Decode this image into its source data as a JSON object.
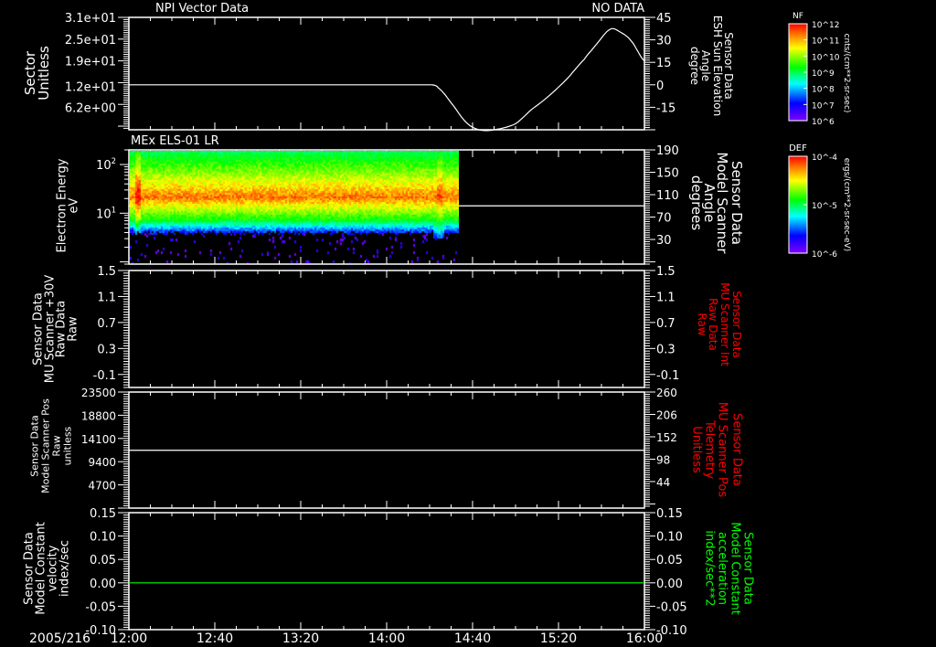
{
  "header": {
    "left_title": "NPI Vector Data",
    "right_status": "NO DATA"
  },
  "colors": {
    "background": "#000000",
    "axis": "#ffffff",
    "red_label": "#ff0000",
    "green_label": "#00ff00"
  },
  "chart_data": [
    {
      "type": "line",
      "panel": "sun-elevation",
      "left_axis": {
        "title": [
          "Sector",
          "Unitless"
        ],
        "ticks": [
          "3.1e+01",
          "2.5e+01",
          "1.9e+01",
          "1.2e+01",
          "6.2e+00"
        ],
        "tick_values": [
          31,
          25,
          19,
          12,
          6.2
        ],
        "range": [
          0,
          31
        ]
      },
      "right_axis": {
        "title": [
          "Sensor Data",
          "ESH Sun Elevation",
          "Angle",
          "degree"
        ],
        "ticks": [
          "45",
          "30",
          "15",
          "0",
          "-15"
        ],
        "tick_values": [
          45,
          30,
          15,
          0,
          -15
        ],
        "range": [
          -30,
          45
        ]
      },
      "series": [
        {
          "name": "ESH Sun Elevation Angle",
          "axis": "right",
          "color": "#ffffff",
          "x_minutes": [
            0,
            141,
            144,
            150,
            157,
            163,
            170,
            180,
            187,
            195,
            204,
            212,
            217,
            224,
            229,
            234,
            240
          ],
          "y": [
            0,
            0,
            -2,
            -12,
            -25,
            -30,
            -30,
            -26,
            -17,
            -8,
            4,
            17,
            26,
            37,
            35,
            29,
            16
          ]
        }
      ]
    },
    {
      "type": "heatmap",
      "panel": "electron-spectrogram",
      "title": "MEx ELS-01 LR",
      "left_axis": {
        "title": [
          "Electron Energy",
          "eV"
        ],
        "ticks": [
          "10^2",
          "10^1"
        ],
        "tick_values": [
          100,
          10
        ],
        "scale": "log",
        "range": [
          0.9,
          200
        ]
      },
      "right_axis": {
        "title": [
          "Sensor Data",
          "Model Scanner",
          "Angle",
          "degrees"
        ],
        "ticks": [
          "190",
          "150",
          "110",
          "70",
          "30"
        ],
        "tick_values": [
          190,
          150,
          110,
          70,
          30
        ],
        "range": [
          -14,
          190
        ]
      },
      "data_extent_minutes": [
        0,
        154
      ],
      "peak_energy_eV": 15,
      "series": [
        {
          "name": "Model Scanner Angle",
          "axis": "right",
          "color": "#ffffff",
          "x_minutes": [
            0,
            240
          ],
          "y": [
            90,
            90
          ]
        }
      ]
    },
    {
      "type": "line",
      "panel": "mu-scanner-30v",
      "left_axis": {
        "title": [
          "Sensor Data",
          "MU Scanner +30V",
          "Raw Data",
          "Raw"
        ],
        "ticks": [
          "1.5",
          "1.1",
          "0.7",
          "0.3",
          "-0.1"
        ],
        "tick_values": [
          1.5,
          1.1,
          0.7,
          0.3,
          -0.1
        ],
        "range": [
          -0.3,
          1.5
        ]
      },
      "right_axis": {
        "title": [
          "Sensor Data",
          "MU Scanner Int",
          "Raw Data",
          "Raw"
        ],
        "title_color": "#ff0000",
        "ticks": [
          "1.5",
          "1.1",
          "0.7",
          "0.3",
          "-0.1"
        ],
        "tick_values": [
          1.5,
          1.1,
          0.7,
          0.3,
          -0.1
        ],
        "range": [
          -0.3,
          1.5
        ]
      },
      "series": []
    },
    {
      "type": "line",
      "panel": "scanner-pos",
      "left_axis": {
        "title": [
          "Sensor Data",
          "Model Scanner Pos",
          "Raw",
          "unitless"
        ],
        "ticks": [
          "23500",
          "18800",
          "14100",
          "9400",
          "4700"
        ],
        "tick_values": [
          23500,
          18800,
          14100,
          9400,
          4700
        ],
        "range": [
          0,
          23500
        ]
      },
      "right_axis": {
        "title": [
          "Sensor Data",
          "MU Scanner Pos",
          "Telemetry",
          "Unitless"
        ],
        "title_color": "#ff0000",
        "ticks": [
          "260",
          "206",
          "152",
          "98",
          "44"
        ],
        "tick_values": [
          260,
          206,
          152,
          98,
          44
        ],
        "range": [
          -20,
          260
        ]
      },
      "series": [
        {
          "name": "Model Scanner Pos",
          "axis": "left",
          "color": "#ffffff",
          "x_minutes": [
            0,
            240
          ],
          "y": [
            11700,
            11700
          ]
        }
      ]
    },
    {
      "type": "line",
      "panel": "constant-velocity",
      "left_axis": {
        "title": [
          "Sensor Data",
          "Model Constant",
          "velocity",
          "index/sec"
        ],
        "ticks": [
          "0.15",
          "0.10",
          "0.05",
          "0.00",
          "-0.05",
          "-0.10"
        ],
        "tick_values": [
          0.15,
          0.1,
          0.05,
          0,
          -0.05,
          -0.1
        ],
        "range": [
          -0.1,
          0.15
        ]
      },
      "right_axis": {
        "title": [
          "Sensor Data",
          "Model Constant",
          "acceleration",
          "index/sec**2"
        ],
        "title_color": "#00ff00",
        "ticks": [
          "0.15",
          "0.10",
          "0.05",
          "0.00",
          "-0.05",
          "-0.10"
        ],
        "tick_values": [
          0.15,
          0.1,
          0.05,
          0,
          -0.05,
          -0.1
        ],
        "range": [
          -0.1,
          0.15
        ]
      },
      "series": [
        {
          "name": "Model Constant velocity",
          "axis": "left",
          "color": "#00ff00",
          "x_minutes": [
            0,
            240
          ],
          "y": [
            0,
            0
          ]
        }
      ]
    }
  ],
  "x_axis": {
    "date": "2005/216",
    "ticks": [
      "12:00",
      "12:40",
      "13:20",
      "14:00",
      "14:40",
      "15:20",
      "16:00"
    ],
    "tick_minutes": [
      0,
      40,
      80,
      120,
      160,
      200,
      240
    ],
    "range_minutes": [
      0,
      240
    ]
  },
  "colorbars": [
    {
      "label": "NF",
      "units": "cnts/(cm**2-sr-sec)",
      "ticks": [
        "10^12",
        "10^11",
        "10^10",
        "10^9",
        "10^8",
        "10^7",
        "10^6"
      ]
    },
    {
      "label": "DEF",
      "units": "ergs/(cm**2-sr-sec-eV)",
      "ticks": [
        "10^-4",
        "10^-5",
        "10^-6"
      ]
    }
  ]
}
